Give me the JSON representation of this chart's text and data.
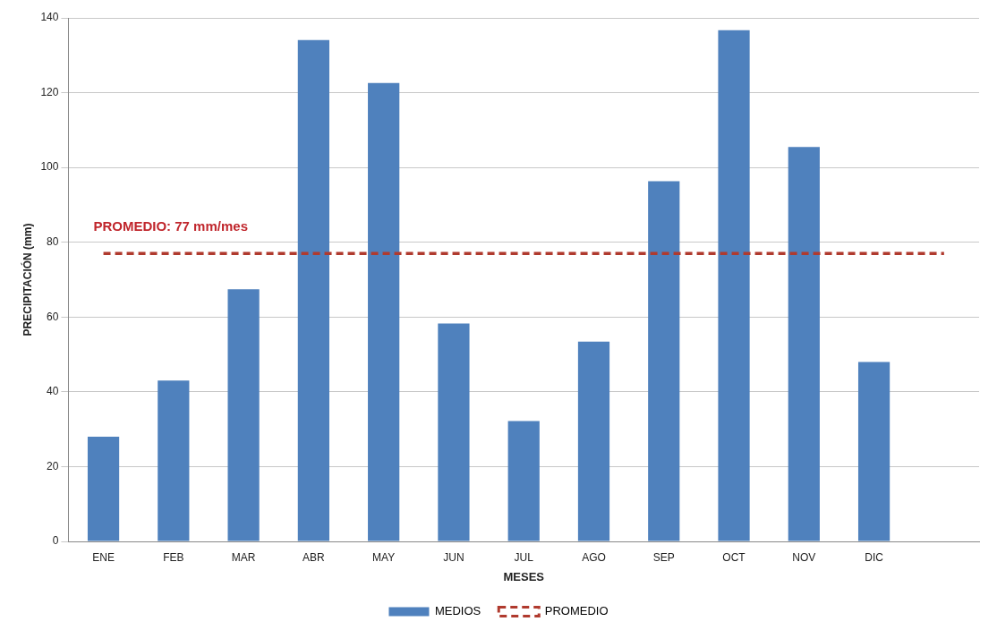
{
  "chart_data": {
    "type": "bar",
    "xlabel": "MESES",
    "ylabel": "PRECIPITACIÓN (mm)",
    "categories": [
      "ENE",
      "FEB",
      "MAR",
      "ABR",
      "MAY",
      "JUN",
      "JUL",
      "AGO",
      "SEP",
      "OCT",
      "NOV",
      "DIC",
      null
    ],
    "series": [
      {
        "name": "MEDIOS",
        "color": "#4f81bd",
        "values": [
          28,
          43,
          67.4,
          134.1,
          122.6,
          58.3,
          32.2,
          53.4,
          96.3,
          136.7,
          105.5,
          48,
          null
        ]
      },
      {
        "name": "PROMEDIO",
        "type": "line",
        "color": "#b03a2e",
        "line_style": "dashed",
        "marker": "none",
        "values": [
          77,
          77,
          77,
          77,
          77,
          77,
          77,
          77,
          77,
          77,
          77,
          77,
          77
        ]
      }
    ],
    "ylim": [
      0,
      140
    ],
    "yticks": [
      0,
      20,
      40,
      60,
      80,
      100,
      120,
      140
    ],
    "grid": "y",
    "legend": "bottom",
    "annotations": [
      {
        "text": "PROMEDIO: 77 mm/mes",
        "y": 77
      }
    ]
  }
}
